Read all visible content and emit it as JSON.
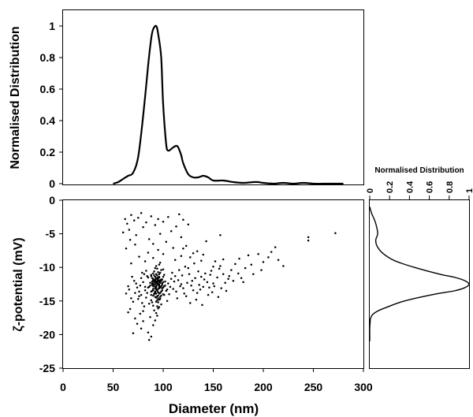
{
  "chart_data": [
    {
      "id": "size-distribution",
      "type": "line",
      "xlabel": "",
      "ylabel": "Normalised Distribution",
      "xlim": [
        0,
        300
      ],
      "ylim": [
        0,
        1.1
      ],
      "yticks": [
        "0",
        "0.2",
        "0.4",
        "0.6",
        "0.8",
        "1"
      ],
      "grid": false,
      "x": [
        50,
        55,
        60,
        65,
        70,
        75,
        80,
        85,
        88,
        90,
        93,
        95,
        98,
        100,
        103,
        105,
        108,
        110,
        113,
        115,
        118,
        120,
        125,
        130,
        135,
        140,
        145,
        150,
        160,
        170,
        180,
        190,
        195,
        200,
        210,
        220,
        230,
        240,
        250,
        260,
        270,
        280
      ],
      "y": [
        0.0,
        0.01,
        0.03,
        0.05,
        0.07,
        0.17,
        0.43,
        0.75,
        0.92,
        0.98,
        1.0,
        0.95,
        0.8,
        0.5,
        0.25,
        0.21,
        0.22,
        0.23,
        0.24,
        0.23,
        0.18,
        0.13,
        0.06,
        0.04,
        0.04,
        0.05,
        0.04,
        0.02,
        0.02,
        0.01,
        0.005,
        0.01,
        0.01,
        0.005,
        0.0,
        0.005,
        0.0,
        0.005,
        0.0,
        0.0,
        0.0,
        0.0
      ]
    },
    {
      "id": "zeta-vs-diameter",
      "type": "scatter",
      "xlabel": "Diameter (nm)",
      "ylabel": "ζ-potential (mV)",
      "xlim": [
        0,
        300
      ],
      "ylim": [
        -25,
        0
      ],
      "xticks": [
        "0",
        "50",
        "100",
        "150",
        "200",
        "250",
        "300"
      ],
      "yticks": [
        "-25",
        "-20",
        "-15",
        "-10",
        "-5",
        "0"
      ],
      "grid": false,
      "points": [
        [
          95,
          -12.5
        ],
        [
          92,
          -13.1
        ],
        [
          98,
          -11.8
        ],
        [
          90,
          -14.2
        ],
        [
          96,
          -12.9
        ],
        [
          94,
          -11.2
        ],
        [
          88,
          -13.6
        ],
        [
          100,
          -12.2
        ],
        [
          93,
          -15.1
        ],
        [
          97,
          -10.8
        ],
        [
          91,
          -12.0
        ],
        [
          99,
          -13.4
        ],
        [
          89,
          -11.6
        ],
        [
          102,
          -12.7
        ],
        [
          95,
          -14.6
        ],
        [
          87,
          -12.3
        ],
        [
          94,
          -10.2
        ],
        [
          96,
          -13.9
        ],
        [
          92,
          -11.4
        ],
        [
          98,
          -15.5
        ],
        [
          90,
          -12.8
        ],
        [
          93,
          -13.3
        ],
        [
          97,
          -11.9
        ],
        [
          85,
          -13.0
        ],
        [
          101,
          -11.1
        ],
        [
          95,
          -16.1
        ],
        [
          91,
          -10.6
        ],
        [
          99,
          -12.4
        ],
        [
          88,
          -14.9
        ],
        [
          94,
          -12.1
        ],
        [
          96,
          -11.5
        ],
        [
          92,
          -13.7
        ],
        [
          89,
          -12.6
        ],
        [
          100,
          -14.0
        ],
        [
          93,
          -11.0
        ],
        [
          97,
          -12.9
        ],
        [
          86,
          -15.4
        ],
        [
          98,
          -10.4
        ],
        [
          90,
          -13.2
        ],
        [
          95,
          -11.7
        ],
        [
          103,
          -13.5
        ],
        [
          91,
          -16.4
        ],
        [
          94,
          -14.3
        ],
        [
          96,
          -12.0
        ],
        [
          88,
          -11.3
        ],
        [
          99,
          -13.1
        ],
        [
          92,
          -12.5
        ],
        [
          93,
          -9.8
        ],
        [
          97,
          -14.7
        ],
        [
          90,
          -11.9
        ],
        [
          84,
          -13.8
        ],
        [
          95,
          -12.2
        ],
        [
          101,
          -12.8
        ],
        [
          89,
          -12.1
        ],
        [
          94,
          -15.8
        ],
        [
          98,
          -13.6
        ],
        [
          91,
          -11.2
        ],
        [
          96,
          -9.6
        ],
        [
          93,
          -13.0
        ],
        [
          87,
          -12.7
        ],
        [
          100,
          -11.4
        ],
        [
          92,
          -14.4
        ],
        [
          95,
          -13.2
        ],
        [
          90,
          -10.9
        ],
        [
          97,
          -12.3
        ],
        [
          94,
          -12.6
        ],
        [
          88,
          -14.1
        ],
        [
          99,
          -11.8
        ],
        [
          93,
          -16.8
        ],
        [
          96,
          -14.8
        ],
        [
          85,
          -11.5
        ],
        [
          91,
          -13.9
        ],
        [
          102,
          -12.1
        ],
        [
          95,
          -10.7
        ],
        [
          89,
          -15.2
        ],
        [
          94,
          -13.4
        ],
        [
          97,
          -9.3
        ],
        [
          92,
          -12.0
        ],
        [
          98,
          -14.2
        ],
        [
          90,
          -12.4
        ],
        [
          104,
          -13.3
        ],
        [
          86,
          -12.9
        ],
        [
          93,
          -11.6
        ],
        [
          96,
          -15.9
        ],
        [
          91,
          -12.2
        ],
        [
          100,
          -10.3
        ],
        [
          95,
          -13.7
        ],
        [
          88,
          -11.1
        ],
        [
          94,
          -17.2
        ],
        [
          92,
          -13.8
        ],
        [
          83,
          -14.5
        ],
        [
          99,
          -12.6
        ],
        [
          97,
          -13.0
        ],
        [
          90,
          -15.7
        ],
        [
          93,
          -12.8
        ],
        [
          96,
          -11.0
        ],
        [
          89,
          -13.5
        ],
        [
          101,
          -14.1
        ],
        [
          94,
          -11.8
        ],
        [
          92,
          -10.1
        ],
        [
          105,
          -12.4
        ],
        [
          108,
          -11.7
        ],
        [
          110,
          -13.2
        ],
        [
          107,
          -12.9
        ],
        [
          112,
          -11.3
        ],
        [
          106,
          -14.0
        ],
        [
          109,
          -10.8
        ],
        [
          111,
          -12.1
        ],
        [
          104,
          -15.0
        ],
        [
          113,
          -13.6
        ],
        [
          115,
          -11.9
        ],
        [
          118,
          -12.5
        ],
        [
          116,
          -10.4
        ],
        [
          120,
          -13.1
        ],
        [
          114,
          -14.6
        ],
        [
          119,
          -11.2
        ],
        [
          117,
          -12.8
        ],
        [
          122,
          -9.9
        ],
        [
          121,
          -13.9
        ],
        [
          124,
          -12.3
        ],
        [
          126,
          -11.0
        ],
        [
          123,
          -14.3
        ],
        [
          128,
          -12.7
        ],
        [
          125,
          -10.1
        ],
        [
          130,
          -13.4
        ],
        [
          127,
          -15.3
        ],
        [
          132,
          -11.6
        ],
        [
          129,
          -12.0
        ],
        [
          134,
          -13.8
        ],
        [
          131,
          -9.4
        ],
        [
          136,
          -12.6
        ],
        [
          133,
          -14.8
        ],
        [
          138,
          -11.4
        ],
        [
          135,
          -10.6
        ],
        [
          140,
          -12.9
        ],
        [
          137,
          -13.3
        ],
        [
          142,
          -10.9
        ],
        [
          139,
          -15.6
        ],
        [
          144,
          -12.2
        ],
        [
          141,
          -11.8
        ],
        [
          146,
          -13.0
        ],
        [
          148,
          -10.5
        ],
        [
          145,
          -14.1
        ],
        [
          150,
          -12.4
        ],
        [
          147,
          -11.1
        ],
        [
          152,
          -9.1
        ],
        [
          149,
          -13.7
        ],
        [
          154,
          -11.5
        ],
        [
          151,
          -12.8
        ],
        [
          156,
          -10.2
        ],
        [
          158,
          -13.1
        ],
        [
          160,
          -11.0
        ],
        [
          155,
          -14.4
        ],
        [
          162,
          -12.3
        ],
        [
          157,
          -9.8
        ],
        [
          165,
          -11.7
        ],
        [
          163,
          -13.5
        ],
        [
          168,
          -10.4
        ],
        [
          170,
          -12.0
        ],
        [
          166,
          -11.3
        ],
        [
          172,
          -9.5
        ],
        [
          175,
          -10.9
        ],
        [
          178,
          -11.6
        ],
        [
          180,
          -12.2
        ],
        [
          176,
          -8.7
        ],
        [
          182,
          -10.1
        ],
        [
          185,
          -8.2
        ],
        [
          188,
          -9.6
        ],
        [
          190,
          -11.0
        ],
        [
          195,
          -8.0
        ],
        [
          200,
          -9.2
        ],
        [
          205,
          -8.5
        ],
        [
          208,
          -7.7
        ],
        [
          212,
          -7.0
        ],
        [
          198,
          -10.4
        ],
        [
          215,
          -8.9
        ],
        [
          245,
          -5.5
        ],
        [
          245,
          -6.0
        ],
        [
          272,
          -4.9
        ],
        [
          220,
          -9.8
        ],
        [
          80,
          -12.2
        ],
        [
          82,
          -13.4
        ],
        [
          78,
          -14.1
        ],
        [
          81,
          -11.0
        ],
        [
          79,
          -15.3
        ],
        [
          77,
          -12.7
        ],
        [
          83,
          -10.5
        ],
        [
          76,
          -13.6
        ],
        [
          80,
          -16.5
        ],
        [
          78,
          -11.6
        ],
        [
          75,
          -14.7
        ],
        [
          82,
          -12.9
        ],
        [
          74,
          -13.0
        ],
        [
          79,
          -10.8
        ],
        [
          81,
          -15.8
        ],
        [
          73,
          -12.4
        ],
        [
          77,
          -16.9
        ],
        [
          84,
          -11.3
        ],
        [
          76,
          -14.3
        ],
        [
          72,
          -13.8
        ],
        [
          70,
          -15.1
        ],
        [
          71,
          -12.0
        ],
        [
          68,
          -14.6
        ],
        [
          69,
          -11.4
        ],
        [
          66,
          -13.3
        ],
        [
          67,
          -16.2
        ],
        [
          65,
          -12.8
        ],
        [
          72,
          -17.6
        ],
        [
          74,
          -18.4
        ],
        [
          78,
          -19.1
        ],
        [
          85,
          -19.7
        ],
        [
          88,
          -20.3
        ],
        [
          80,
          -18.0
        ],
        [
          87,
          -17.4
        ],
        [
          90,
          -18.6
        ],
        [
          86,
          -20.8
        ],
        [
          92,
          -17.9
        ],
        [
          70,
          -19.8
        ],
        [
          65,
          -16.7
        ],
        [
          63,
          -13.9
        ],
        [
          62,
          -2.8
        ],
        [
          64,
          -3.5
        ],
        [
          66,
          -4.4
        ],
        [
          68,
          -2.2
        ],
        [
          71,
          -3.0
        ],
        [
          73,
          -5.2
        ],
        [
          75,
          -2.6
        ],
        [
          78,
          -1.9
        ],
        [
          80,
          -4.0
        ],
        [
          83,
          -3.3
        ],
        [
          86,
          -5.8
        ],
        [
          88,
          -2.4
        ],
        [
          90,
          -6.5
        ],
        [
          92,
          -3.7
        ],
        [
          95,
          -2.8
        ],
        [
          97,
          -5.0
        ],
        [
          100,
          -3.2
        ],
        [
          103,
          -6.2
        ],
        [
          105,
          -2.5
        ],
        [
          108,
          -4.6
        ],
        [
          110,
          -7.1
        ],
        [
          113,
          -3.9
        ],
        [
          116,
          -2.1
        ],
        [
          118,
          -5.5
        ],
        [
          120,
          -2.9
        ],
        [
          123,
          -6.8
        ],
        [
          125,
          -3.6
        ],
        [
          118,
          -8.3
        ],
        [
          112,
          -8.9
        ],
        [
          100,
          -8.0
        ],
        [
          95,
          -7.4
        ],
        [
          90,
          -8.6
        ],
        [
          85,
          -7.8
        ],
        [
          82,
          -9.1
        ],
        [
          76,
          -8.4
        ],
        [
          72,
          -6.6
        ],
        [
          67,
          -5.9
        ],
        [
          63,
          -7.2
        ],
        [
          60,
          -4.8
        ],
        [
          68,
          -9.4
        ],
        [
          93,
          -12.3
        ],
        [
          95,
          -12.0
        ],
        [
          94,
          -13.5
        ],
        [
          96,
          -12.7
        ],
        [
          92,
          -12.9
        ],
        [
          97,
          -13.8
        ],
        [
          91,
          -14.0
        ],
        [
          95,
          -11.5
        ],
        [
          93,
          -14.5
        ],
        [
          94,
          -12.4
        ],
        [
          96,
          -13.1
        ],
        [
          92,
          -11.8
        ],
        [
          98,
          -12.8
        ],
        [
          90,
          -13.4
        ],
        [
          95,
          -14.2
        ],
        [
          94,
          -11.6
        ],
        [
          97,
          -12.2
        ],
        [
          93,
          -13.9
        ],
        [
          91,
          -12.6
        ],
        [
          96,
          -11.4
        ],
        [
          89,
          -12.4
        ],
        [
          100,
          -13.0
        ],
        [
          94,
          -14.9
        ],
        [
          92,
          -13.6
        ],
        [
          95,
          -15.2
        ],
        [
          98,
          -12.0
        ],
        [
          90,
          -11.7
        ],
        [
          93,
          -12.1
        ],
        [
          97,
          -14.4
        ],
        [
          96,
          -12.5
        ],
        [
          140,
          -8.1
        ],
        [
          150,
          -9.9
        ],
        [
          160,
          -8.8
        ],
        [
          134,
          -7.6
        ],
        [
          127,
          -8.5
        ],
        [
          120,
          -7.2
        ],
        [
          143,
          -6.1
        ],
        [
          157,
          -5.2
        ],
        [
          138,
          -9.0
        ],
        [
          130,
          -7.9
        ]
      ]
    },
    {
      "id": "zeta-distribution",
      "type": "line",
      "title": "Normalised Distribution",
      "xlim": [
        0,
        1
      ],
      "ylim": [
        -25,
        0
      ],
      "xticks": [
        "0",
        "0.2",
        "0.4",
        "0.6",
        "0.8",
        "1"
      ],
      "grid": false,
      "zeta": [
        -1,
        -2,
        -3,
        -4,
        -5,
        -6,
        -7,
        -8,
        -9,
        -10,
        -11,
        -11.5,
        -12,
        -12.5,
        -13,
        -13.5,
        -14,
        -15,
        -16,
        -16.5,
        -17,
        -17.5,
        -18,
        -19,
        -20,
        -21
      ],
      "distribution": [
        0.0,
        0.02,
        0.05,
        0.07,
        0.08,
        0.06,
        0.08,
        0.14,
        0.25,
        0.45,
        0.7,
        0.86,
        0.96,
        1.0,
        0.96,
        0.85,
        0.65,
        0.35,
        0.16,
        0.08,
        0.03,
        0.01,
        0.005,
        0.0,
        0.0,
        0.0
      ]
    }
  ]
}
